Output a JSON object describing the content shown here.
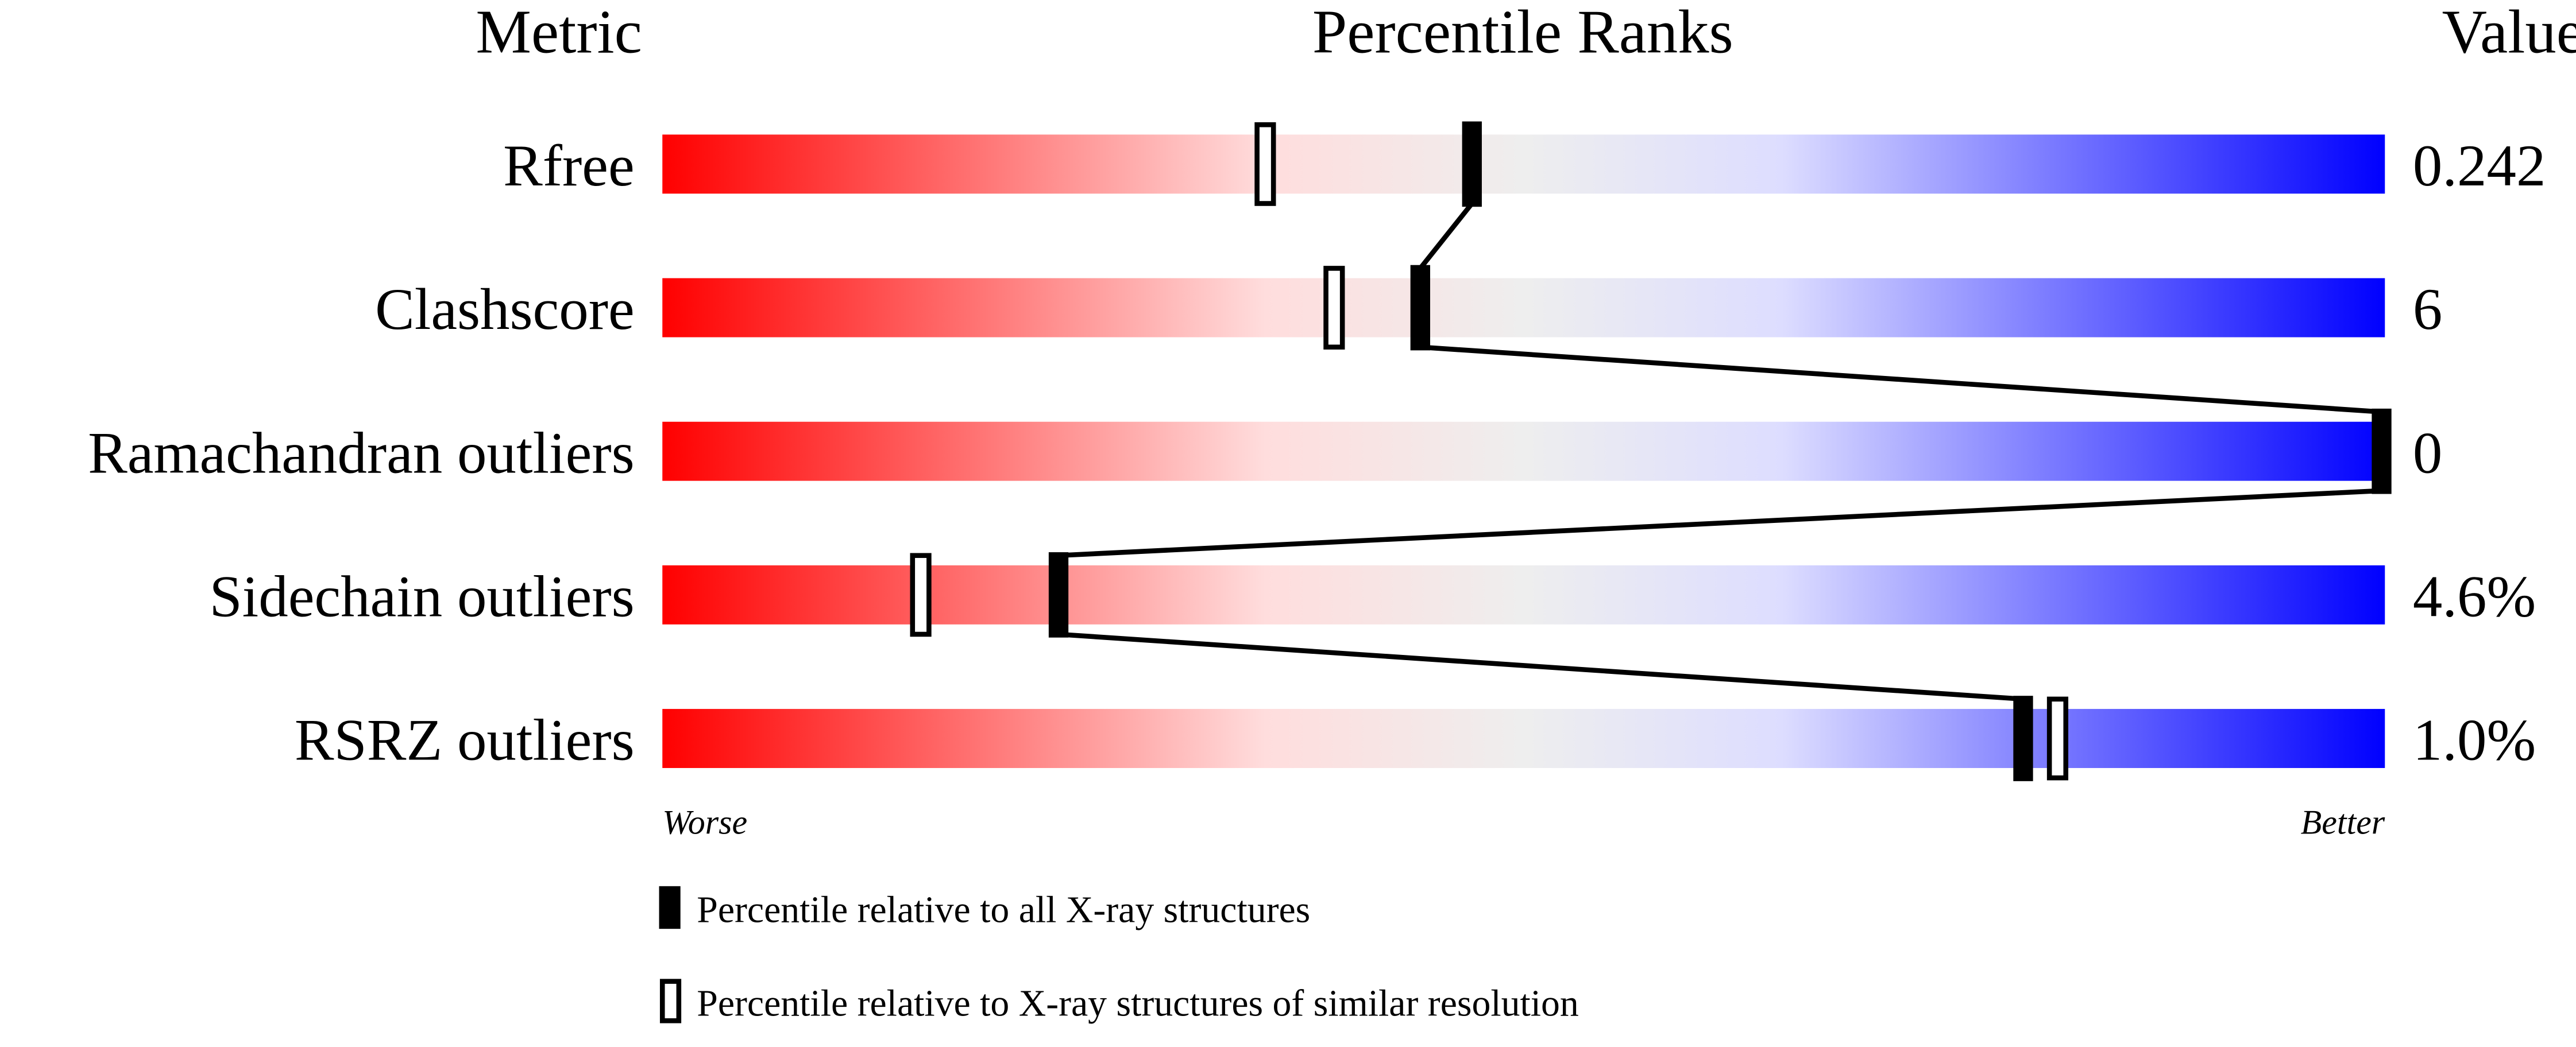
{
  "chart_data": {
    "type": "percentile-ranks",
    "headers": {
      "metric": "Metric",
      "ranks": "Percentile Ranks",
      "value": "Value"
    },
    "axis": {
      "min": 0,
      "max": 100,
      "left_label": "Worse",
      "right_label": "Better"
    },
    "gradient_colors": [
      "#ff0000",
      "#ffdddd",
      "#eeeeee",
      "#ddddff",
      "#0000ff"
    ],
    "metrics": [
      {
        "name": "Rfree",
        "value": "0.242",
        "percentile_all": 47,
        "percentile_similar": 35
      },
      {
        "name": "Clashscore",
        "value": "6",
        "percentile_all": 44,
        "percentile_similar": 39
      },
      {
        "name": "Ramachandran outliers",
        "value": "0",
        "percentile_all": 100,
        "percentile_similar": 100
      },
      {
        "name": "Sidechain outliers",
        "value": "4.6%",
        "percentile_all": 23,
        "percentile_similar": 15
      },
      {
        "name": "RSRZ outliers",
        "value": "1.0%",
        "percentile_all": 79,
        "percentile_similar": 81
      }
    ],
    "legend": [
      {
        "marker": "filled",
        "label": "Percentile relative to all X-ray structures"
      },
      {
        "marker": "open",
        "label": "Percentile relative to X-ray structures of similar resolution"
      }
    ]
  }
}
